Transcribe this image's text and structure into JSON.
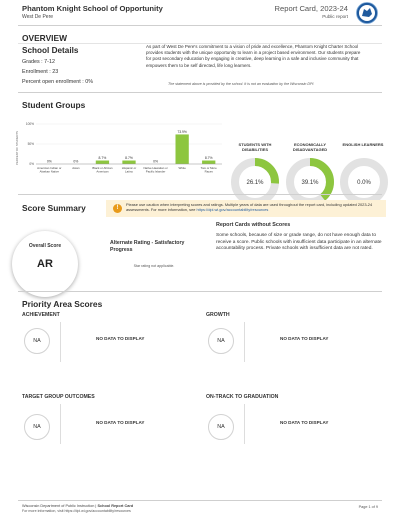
{
  "header": {
    "school": "Phantom Knight School of Opportunity",
    "district": "West De Pere",
    "report": "Report Card, 2023-24",
    "public": "Public report",
    "logo_icon": "wisconsin-dpi-logo-icon"
  },
  "overview": {
    "title": "OVERVIEW",
    "details_title": "School Details",
    "grades": "Grades : 7-12",
    "enrollment": "Enrollment : 23",
    "open_enrollment": "Percent open enrollment : 0%",
    "description": "As part of West De Pere's commitment to a vision of pride and excellence, Phantom Knight Charter School provides students with the unique opportunity to learn in a project based environment. Our students prepare for post secondary education by engaging in creative, deep learning in a safe and inclusive community that empowers them to be self directed, life long learners.",
    "note": "The statement above is provided by the school. It is not an evaluation by the Wisconsin DPI."
  },
  "student_groups": {
    "title": "Student Groups",
    "circles": [
      {
        "label": "STUDENTS WITH DISABILITIES",
        "value": "26.1%",
        "fraction": 0.261
      },
      {
        "label": "ECONOMICALLY DISADVANTAGED",
        "value": "39.1%",
        "fraction": 0.391
      },
      {
        "label": "ENGLISH LEARNERS",
        "value": "0.0%",
        "fraction": 0.0
      }
    ]
  },
  "chart_data": {
    "type": "bar",
    "title": "",
    "ylabel": "PERCENT OF STUDENTS",
    "yticks": [
      "100%",
      "50%",
      "0%"
    ],
    "ylim": [
      0,
      100
    ],
    "categories": [
      [
        "American Indian or",
        "Alaskan Native"
      ],
      [
        "Asian"
      ],
      [
        "Black or African",
        "American"
      ],
      [
        "Hispanic or",
        "Latino"
      ],
      [
        "Native Hawaiian or",
        "Pacific Islander"
      ],
      [
        "White"
      ],
      [
        "Two or More",
        "Races"
      ]
    ],
    "values": [
      0.0,
      0.0,
      8.7,
      8.7,
      0.0,
      73.9,
      8.7
    ],
    "labels": [
      "0%",
      "0%",
      "8.7%",
      "8.7%",
      "0%",
      "73.9%",
      "8.7%"
    ],
    "bar_color": "#8dc63f",
    "colors": {
      "circle_fill": "#8dc63f",
      "circle_track": "#e2e2e2"
    }
  },
  "score_summary": {
    "title": "Score Summary",
    "caution": "Please use caution when interpreting scores and ratings. Multiple years of data are used throughout the report card, including updated 2023-24 assessments. For more information, see",
    "caution_link": "https://dpi.wi.gov/accountability/resources",
    "caution_icon": "warning-icon",
    "overall_label": "Overall Score",
    "overall_value": "AR",
    "alt_rating": "Alternate Rating - Satisfactory Progress",
    "star_note": "Star rating not applicable.",
    "rc_title": "Report Cards without Scores",
    "rc_text": "Some schools, because of size or grade range, do not have enough data to receive a score. Public schools with insufficient data participate in an alternate accountability process. Private schools with insufficient data are not rated."
  },
  "priority": {
    "title": "Priority Area Scores",
    "areas": [
      {
        "head": "ACHIEVEMENT",
        "na": "NA",
        "nodata": "NO DATA TO DISPLAY"
      },
      {
        "head": "GROWTH",
        "na": "NA",
        "nodata": "NO DATA TO DISPLAY"
      },
      {
        "head": "TARGET GROUP OUTCOMES",
        "na": "NA",
        "nodata": "NO DATA TO DISPLAY"
      },
      {
        "head": "ON-TRACK TO GRADUATION",
        "na": "NA",
        "nodata": "NO DATA TO DISPLAY"
      }
    ]
  },
  "footer": {
    "line1_a": "Wisconsin Department of Public Instruction | ",
    "line1_b": "School Report Card",
    "line2": "For more information, visit https://dpi.wi.gov/accountability/resources",
    "page": "Page 1 of 9"
  }
}
